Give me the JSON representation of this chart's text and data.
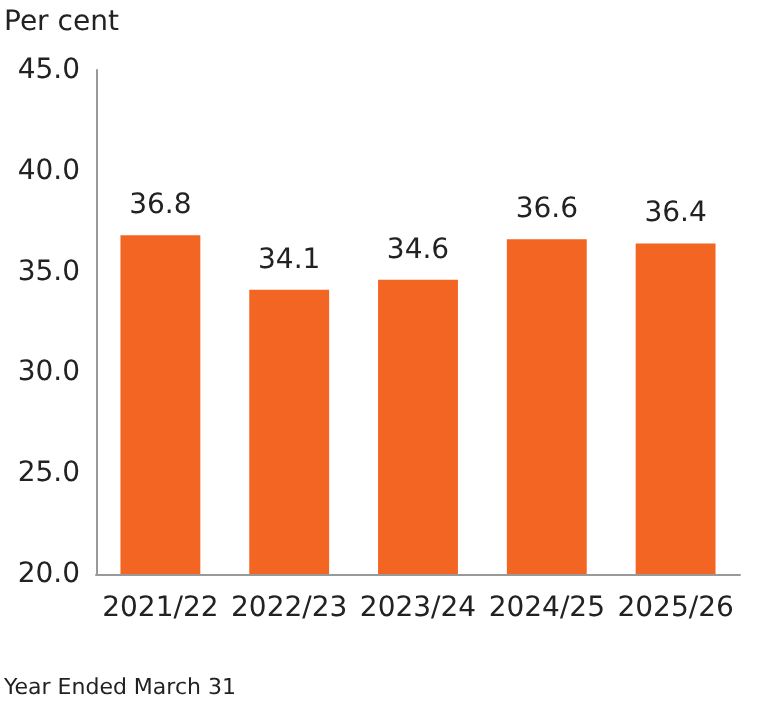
{
  "chart_data": {
    "type": "bar",
    "ylabel": "Per cent",
    "xlabel": "Year Ended March 31",
    "categories": [
      "2021/22",
      "2022/23",
      "2023/24",
      "2024/25",
      "2025/26"
    ],
    "values": [
      36.8,
      34.1,
      34.6,
      36.6,
      36.4
    ],
    "color": "#f26522",
    "ylim": [
      20,
      45
    ],
    "yticks": [
      {
        "value": 20,
        "label": "20.0"
      },
      {
        "value": 25,
        "label": "25.0"
      },
      {
        "value": 30,
        "label": "30.0"
      },
      {
        "value": 35,
        "label": "35.0"
      },
      {
        "value": 40,
        "label": "40.0"
      },
      {
        "value": 45,
        "label": "45.0"
      }
    ],
    "grid": false,
    "data_labels": true
  }
}
